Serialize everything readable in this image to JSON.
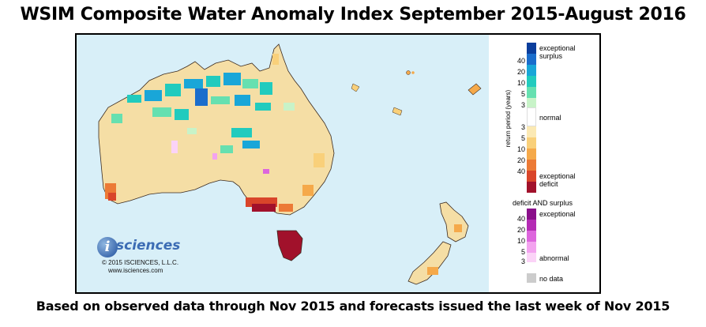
{
  "title": "WSIM Composite Water Anomaly Index September 2015-August 2016",
  "footer": "Based on observed data through Nov 2015 and forecasts issued the last week of Nov 2015",
  "logo": {
    "brand": "sciences",
    "glyph": "i",
    "copyright": "© 2015 ISCIENCES, L.L.C.",
    "url": "www.isciences.com"
  },
  "legend": {
    "axis_label": "return period (years)",
    "exceptional_surplus_line1": "exceptional",
    "exceptional_surplus_line2": "surplus",
    "normal": "normal",
    "exceptional_deficit_line1": "exceptional",
    "exceptional_deficit_line2": "deficit",
    "both_title": "deficit AND surplus",
    "both_exceptional": "exceptional",
    "both_abnormal": "abnormal",
    "no_data": "no data",
    "surplus_ticks": [
      "40",
      "20",
      "10",
      "5",
      "3"
    ],
    "deficit_ticks": [
      "3",
      "5",
      "10",
      "20",
      "40"
    ],
    "both_ticks": [
      "40",
      "20",
      "10",
      "5",
      "3"
    ],
    "surplus_colors": [
      "#0b3e9c",
      "#1a6dcc",
      "#19a6d8",
      "#21cbbe",
      "#66e0b0",
      "#c8f3c8"
    ],
    "normal_color": "#ffffff",
    "deficit_colors": [
      "#fbe9b4",
      "#f9d07a",
      "#f5a94a",
      "#ec7a36",
      "#d9452a",
      "#a1112b"
    ],
    "both_colors": [
      "#8a0f8a",
      "#b42bb4",
      "#dd66dd",
      "#f3a3ef",
      "#fbd3f7"
    ],
    "no_data_color": "#cccccc"
  }
}
